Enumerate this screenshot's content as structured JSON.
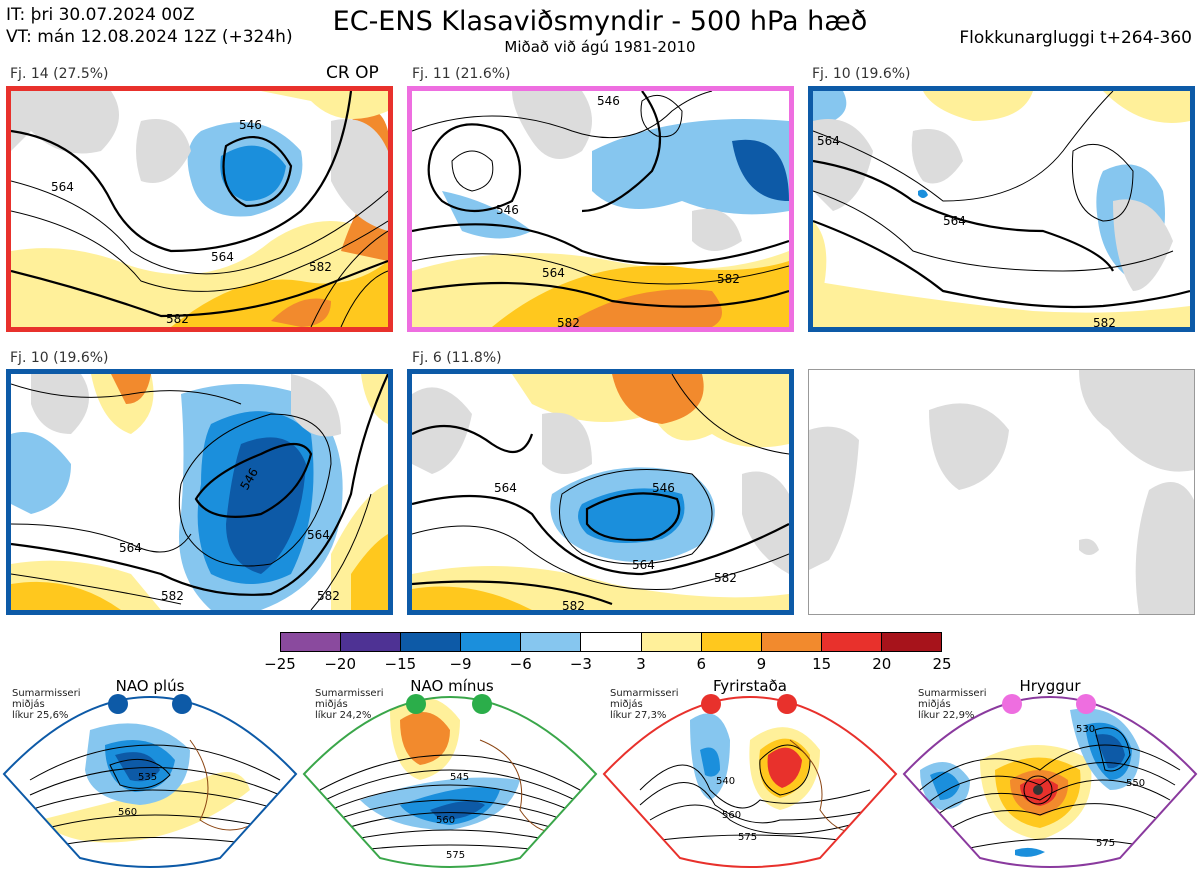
{
  "header": {
    "init_time": "IT: þri 30.07.2024 00Z",
    "valid_time": "VT: mán 12.08.2024 12Z  (+324h)",
    "title": "EC-ENS Klasaviðsmyndir - 500 hPa hæð",
    "subtitle": "Miðað við ágú 1981-2010",
    "window": "Flokkunargluggi t+264-360"
  },
  "clusters": [
    {
      "label": "Fj. 14 (27.5%)",
      "tag": "CR OP",
      "color": "#e8312c",
      "contours": [
        "546",
        "564",
        "564",
        "582",
        "582"
      ]
    },
    {
      "label": "Fj. 11 (21.6%)",
      "tag": "",
      "color": "#ee6ee0",
      "contours": [
        "546",
        "546",
        "564",
        "582",
        "582"
      ]
    },
    {
      "label": "Fj. 10 (19.6%)",
      "tag": "",
      "color": "#0d5aa7",
      "contours": [
        "564",
        "564",
        "582"
      ]
    },
    {
      "label": "Fj. 10 (19.6%)",
      "tag": "",
      "color": "#0d5aa7",
      "contours": [
        "546",
        "564",
        "582",
        "564",
        "582"
      ]
    },
    {
      "label": "Fj. 6 (11.8%)",
      "tag": "",
      "color": "#0d5aa7",
      "contours": [
        "564",
        "546",
        "564",
        "582",
        "582"
      ]
    }
  ],
  "colorbar": {
    "ticks": [
      "−25",
      "−20",
      "−15",
      "−9",
      "−6",
      "−3",
      "3",
      "6",
      "9",
      "15",
      "20",
      "25"
    ],
    "colors": [
      "#8a4a9e",
      "#4e3294",
      "#0d5aa7",
      "#1b8fdc",
      "#86c6ef",
      "#ffffff",
      "#fff09a",
      "#ffc81e",
      "#f28a2d",
      "#e8312c",
      "#a7131b"
    ]
  },
  "regimes": [
    {
      "name": "NAO plús",
      "season": "Sumarmisseri",
      "median": "miðjás",
      "prob": "líkur 25,6%",
      "color": "#0d5aa7",
      "dot_color": "#0d5aa7",
      "contours": [
        "535",
        "560"
      ]
    },
    {
      "name": "NAO mínus",
      "season": "Sumarmisseri",
      "median": "miðjás",
      "prob": "líkur 24,2%",
      "color": "#3aa64a",
      "dot_color": "#2bae4a",
      "contours": [
        "545",
        "560",
        "575"
      ]
    },
    {
      "name": "Fyrirstaða",
      "season": "Sumarmisseri",
      "median": "miðjás",
      "prob": "líkur 27,3%",
      "color": "#e8312c",
      "dot_color": "#e8312c",
      "contours": [
        "540",
        "560",
        "575"
      ]
    },
    {
      "name": "Hryggur",
      "season": "Sumarmisseri",
      "median": "miðjás",
      "prob": "líkur 22,9%",
      "color": "#8a3a9e",
      "dot_color": "#ee6ee0",
      "contours": [
        "530",
        "550",
        "575"
      ]
    }
  ]
}
